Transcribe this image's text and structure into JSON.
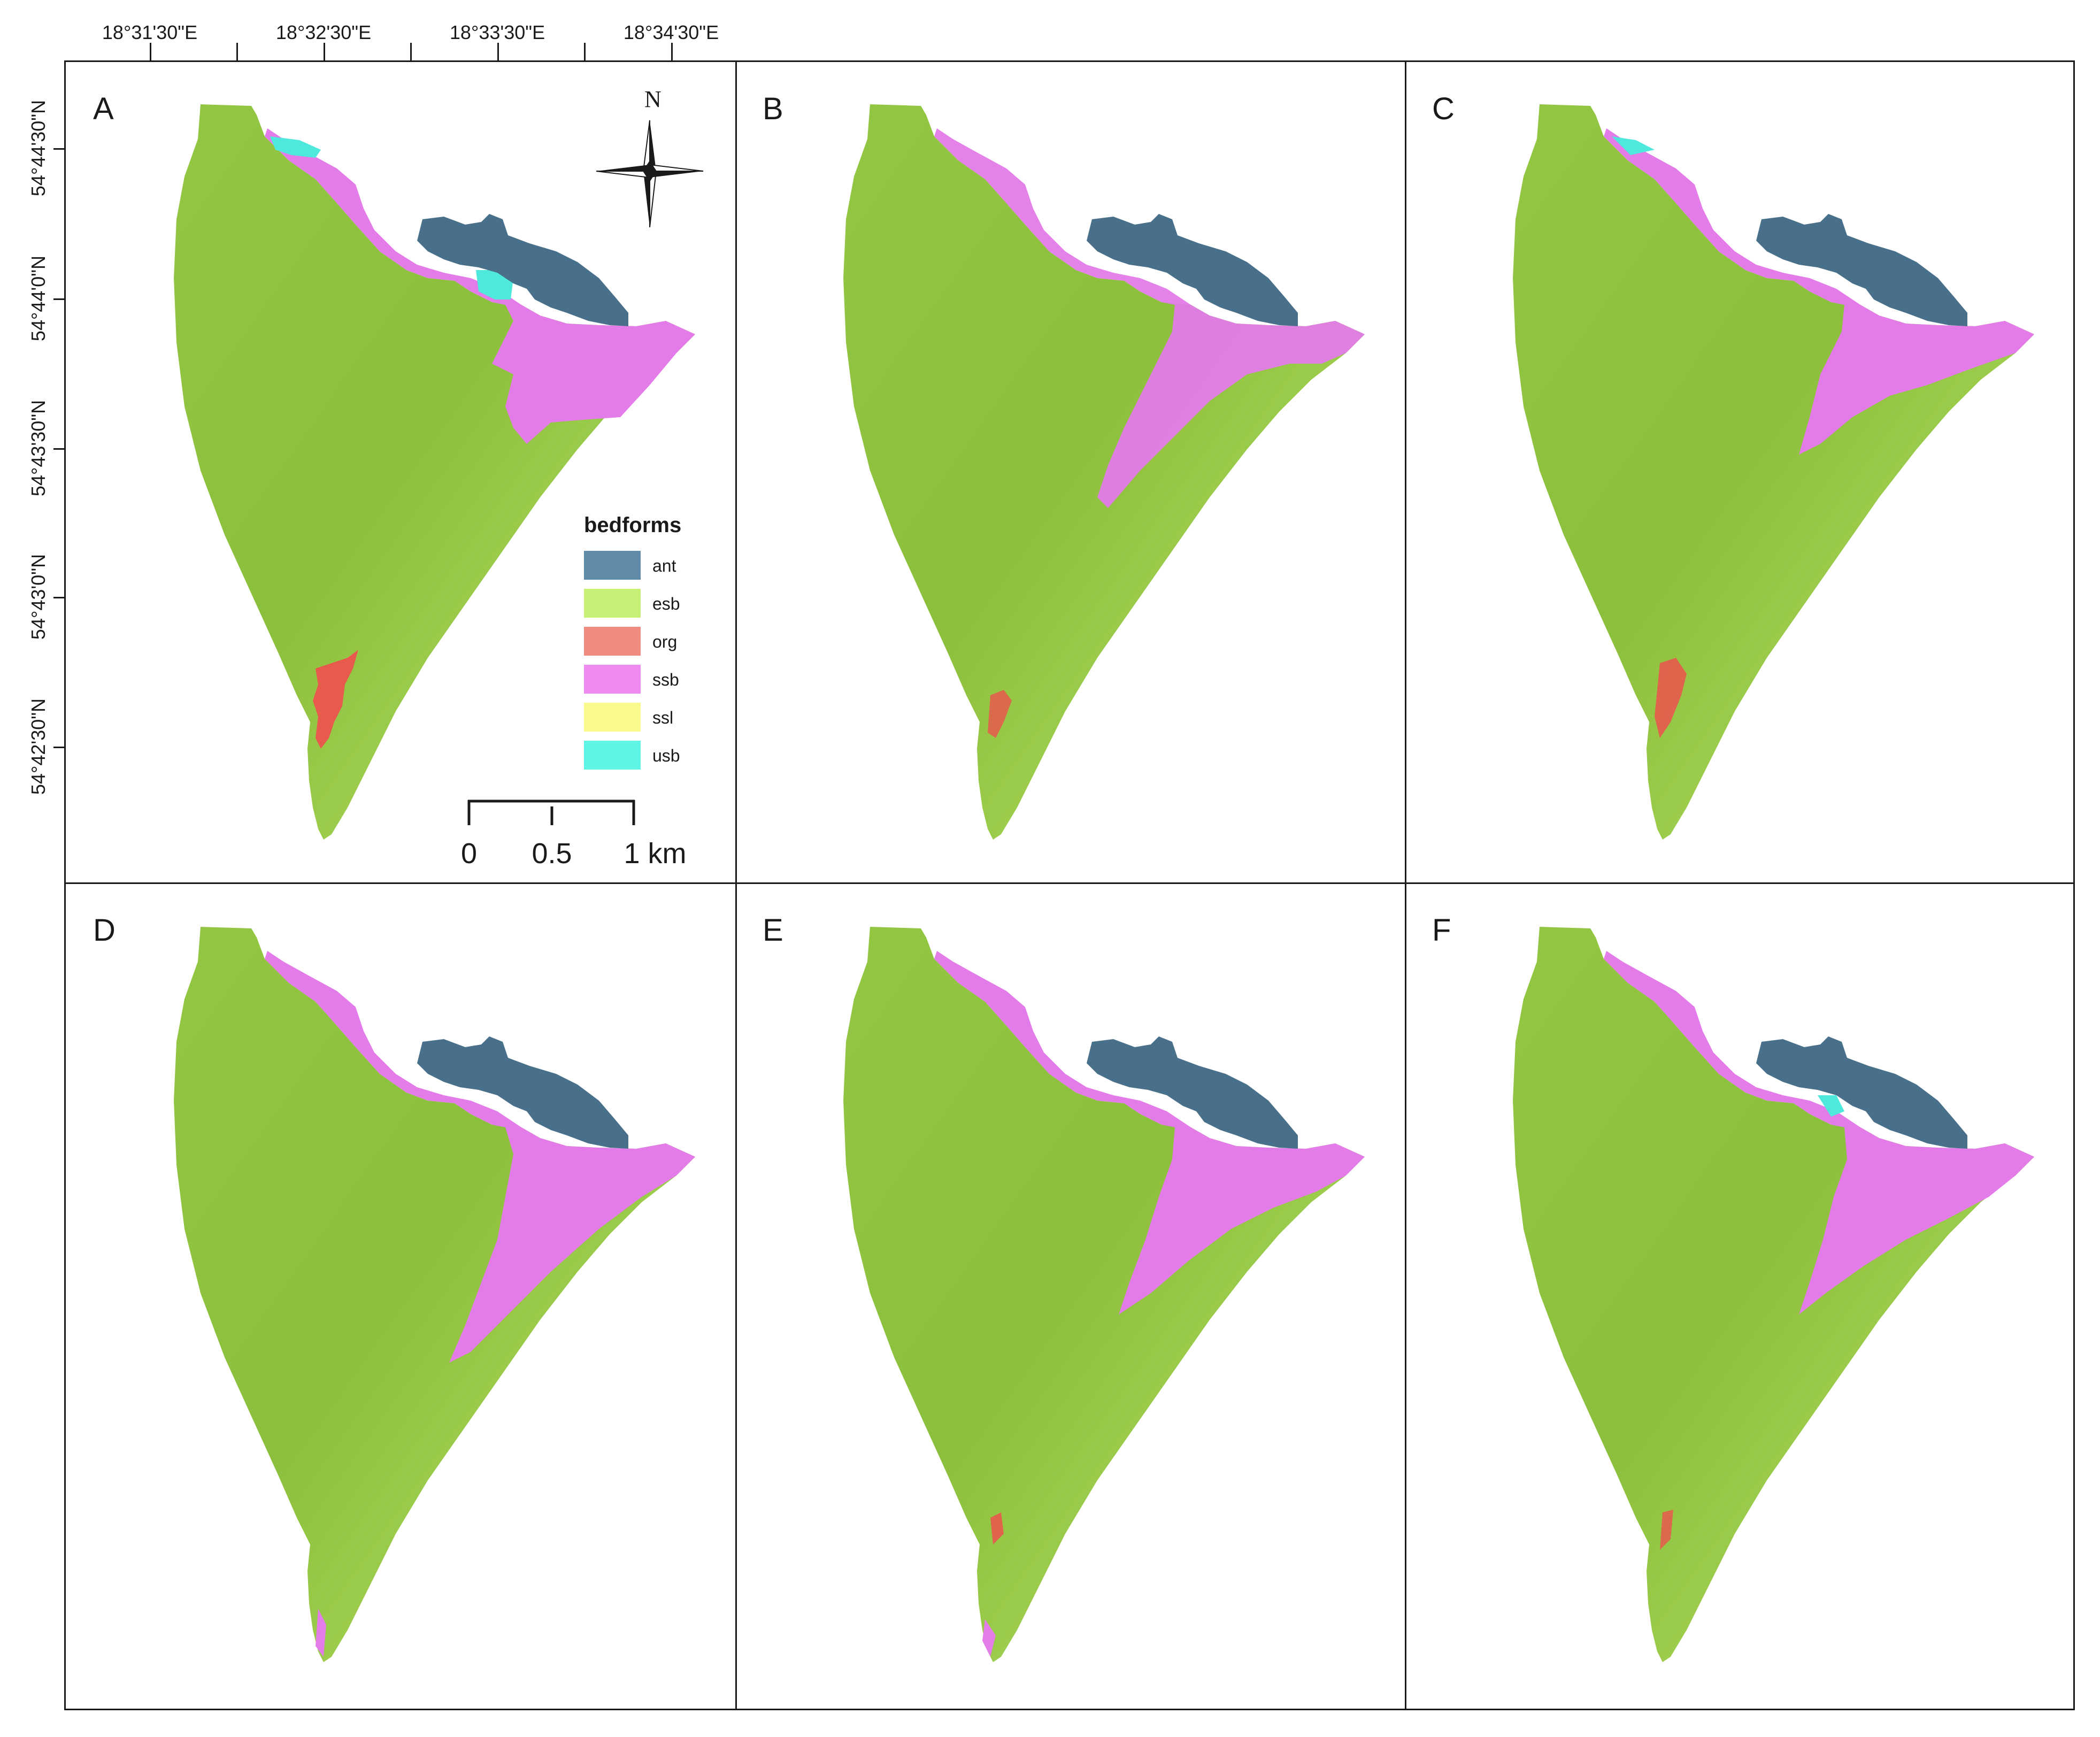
{
  "longitude_labels": [
    "18°31'30\"E",
    "18°32'30\"E",
    "18°33'30\"E",
    "18°34'30\"E"
  ],
  "latitude_labels": [
    "54°44'30\"N",
    "54°44'0\"N",
    "54°43'30\"N",
    "54°43'0\"N",
    "54°42'30\"N"
  ],
  "panels": [
    {
      "id": "A",
      "label": "A"
    },
    {
      "id": "B",
      "label": "B"
    },
    {
      "id": "C",
      "label": "C"
    },
    {
      "id": "D",
      "label": "D"
    },
    {
      "id": "E",
      "label": "E"
    },
    {
      "id": "F",
      "label": "F"
    }
  ],
  "north_arrow": {
    "letter": "N",
    "icon": "compass-rose-icon"
  },
  "legend": {
    "title": "bedforms",
    "items": [
      {
        "label": "ant",
        "color": "#5f8aa8"
      },
      {
        "label": "esb",
        "color": "#c8f077"
      },
      {
        "label": "org",
        "color": "#f28b7f"
      },
      {
        "label": "ssb",
        "color": "#ee8af0"
      },
      {
        "label": "ssl",
        "color": "#fafa8c"
      },
      {
        "label": "usb",
        "color": "#5ef5e6"
      }
    ]
  },
  "scale_bar": {
    "labels": [
      "0",
      "0.5",
      "1 km"
    ]
  },
  "colors": {
    "esb_dark": "#8cbf3c",
    "esb_light": "#b4df62",
    "ssb": "#e37be8",
    "ant": "#48708a",
    "usb": "#4fe8dc",
    "org": "#e8594e"
  }
}
